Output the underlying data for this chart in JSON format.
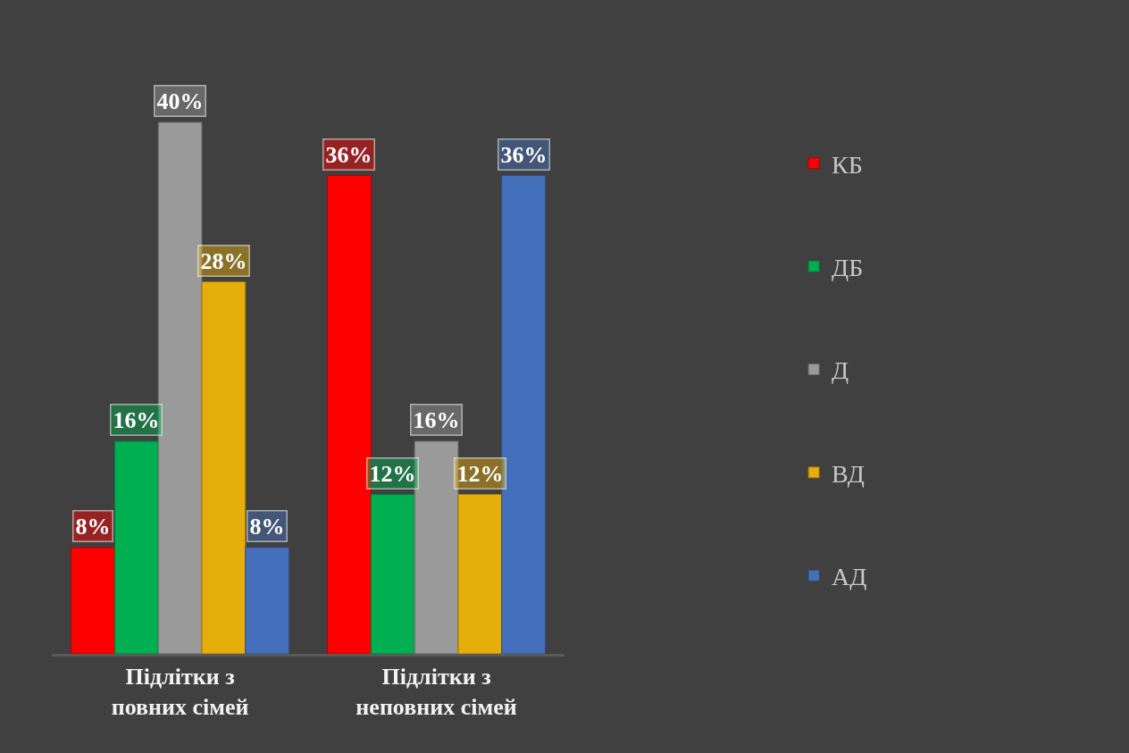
{
  "chart_data": {
    "type": "bar",
    "categories": [
      "Підлітки з повних сімей",
      "Підлітки з неповних сімей"
    ],
    "series": [
      {
        "name": "КБ",
        "color": "#ff0000",
        "values": [
          8,
          36
        ],
        "value_labels": [
          "8%",
          "36%"
        ]
      },
      {
        "name": "ДБ",
        "color": "#00b050",
        "values": [
          16,
          12
        ],
        "value_labels": [
          "16%",
          "12%"
        ]
      },
      {
        "name": "Д",
        "color": "#9a9a9a",
        "values": [
          40,
          16
        ],
        "value_labels": [
          "40%",
          "16%"
        ]
      },
      {
        "name": "ВД",
        "color": "#e6ae0b",
        "values": [
          28,
          12
        ],
        "value_labels": [
          "28%",
          "12%"
        ]
      },
      {
        "name": "АД",
        "color": "#4470bb",
        "values": [
          8,
          36
        ],
        "value_labels": [
          "8%",
          "36%"
        ]
      }
    ],
    "legend": "right",
    "grid": false
  }
}
